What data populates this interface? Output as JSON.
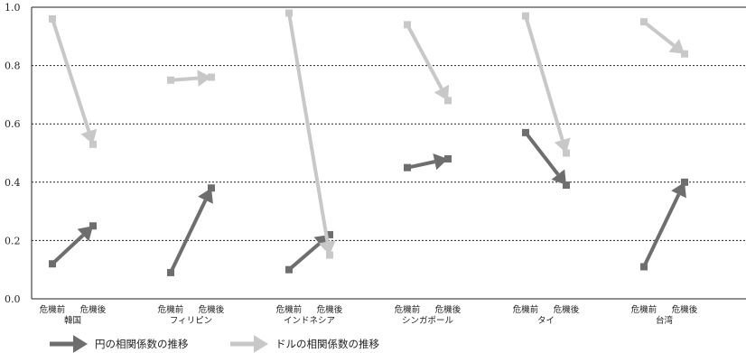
{
  "chart_data": {
    "type": "line",
    "ylim": [
      0,
      1.0
    ],
    "yticks": [
      "0.0",
      "0.2",
      "0.4",
      "0.6",
      "0.8",
      "1.0"
    ],
    "grid": "horizontal dotted",
    "sub_labels": [
      "危機前",
      "危機後"
    ],
    "categories": [
      "韓国",
      "フィリピン",
      "インドネシア",
      "シンガポール",
      "タイ",
      "台湾"
    ],
    "series": [
      {
        "name": "円の相関係数の推移",
        "color": "#6e6e6e",
        "before": [
          0.12,
          0.09,
          0.1,
          0.45,
          0.57,
          0.11
        ],
        "after": [
          0.25,
          0.38,
          0.22,
          0.48,
          0.39,
          0.4
        ]
      },
      {
        "name": "ドルの相関係数の推移",
        "color": "#c8c8c8",
        "before": [
          0.96,
          0.75,
          0.98,
          0.94,
          0.97,
          0.95
        ],
        "after": [
          0.53,
          0.76,
          0.15,
          0.68,
          0.5,
          0.84
        ]
      }
    ],
    "legend_position": "bottom-left"
  }
}
